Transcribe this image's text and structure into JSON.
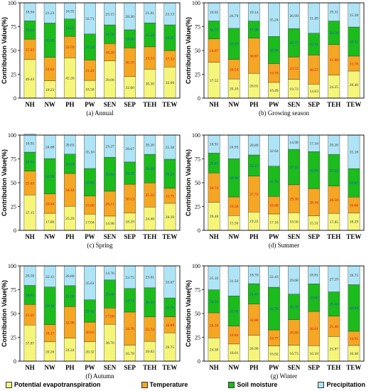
{
  "chart_data": {
    "type": "bar",
    "stacked": true,
    "series_meta": [
      {
        "name": "Potential evapotranspiration",
        "color": "#f5f57a"
      },
      {
        "name": "Temperature",
        "color": "#f5a623"
      },
      {
        "name": "Soil moisture",
        "color": "#1bbc1b"
      },
      {
        "name": "Precipitation",
        "color": "#aee4f5"
      }
    ],
    "categories": [
      "NH",
      "NW",
      "PH",
      "PW",
      "SEN",
      "SEP",
      "TEH",
      "TEW"
    ],
    "ylabel": "Contribution Value(%)",
    "ylim": [
      0,
      100
    ],
    "yticks": [
      0,
      25,
      50,
      75,
      100
    ],
    "panels": [
      {
        "caption": "(a) Annual",
        "series": [
          {
            "name": "Potential evapotranspiration",
            "values": [
              40.43,
              18.23,
              42.26,
              18.58,
              39.06,
              22.6,
              30.3,
              32.6
            ]
          },
          {
            "name": "Temperature",
            "values": [
              21.43,
              24.62,
              22.59,
              21.42,
              18.2,
              30.1,
              23.53,
              17.32
            ]
          },
          {
            "name": "Soil moisture",
            "values": [
              19.22,
              35.92,
              18.22,
              27.29,
              19.58,
              19.0,
              25.16,
              26.95
            ]
          },
          {
            "name": "Precipitation",
            "values": [
              18.94,
              21.23,
              16.93,
              32.71,
              23.15,
              28.3,
              21.01,
              23.13
            ]
          }
        ]
      },
      {
        "caption": "(b) Growing season",
        "series": [
          {
            "name": "Potential evapotranspiration",
            "values": [
              37.52,
              20.1,
              26.01,
              16.49,
              19.72,
              14.63,
              24.25,
              28.4
            ]
          },
          {
            "name": "Temperature",
            "values": [
              24.67,
              20.54,
              36.87,
              19.78,
              23.52,
              30.57,
              31.88,
              15.7
            ]
          },
          {
            "name": "Soil moisture",
            "values": [
              18.77,
              32.57,
              17.98,
              28.49,
              29.77,
              22.91,
              24.76,
              30.52
            ]
          },
          {
            "name": "Precipitation",
            "values": [
              19.05,
              26.79,
              19.14,
              35.24,
              26.99,
              31.89,
              19.31,
              25.38
            ]
          }
        ]
      },
      {
        "caption": "(c) Spring",
        "series": [
          {
            "name": "Potential evapotranspiration",
            "values": [
              37.15,
              17.89,
              25.29,
              17.04,
              14.98,
              18.29,
              24.48,
              28.39
            ]
          },
          {
            "name": "Temperature",
            "values": [
              25.03,
              20.44,
              34.44,
              19.0,
              26.11,
              30.13,
              25.32,
              15.73
            ]
          },
          {
            "name": "Soil moisture",
            "values": [
              19.91,
              36.99,
              20.24,
              28.86,
              35.64,
              23.32,
              30.0,
              30.53
            ]
          },
          {
            "name": "Precipitation",
            "values": [
              18.91,
              24.68,
              20.03,
              35.1,
              23.27,
              28.07,
              20.2,
              25.38
            ]
          }
        ]
      },
      {
        "caption": "(d) Summer",
        "series": [
          {
            "name": "Potential evapotranspiration",
            "values": [
              29.48,
              15.5,
              19.22,
              17.18,
              18.56,
              15.31,
              17.85,
              18.29
            ]
          },
          {
            "name": "Temperature",
            "values": [
              30.74,
              19.58,
              37.72,
              18.48,
              29.3,
              28.44,
              28.58,
              16.66
            ]
          },
          {
            "name": "Soil moisture",
            "values": [
              20.87,
              39.99,
              22.17,
              31.7,
              37.16,
              38.88,
              33.32,
              29.87
            ]
          },
          {
            "name": "Precipitation",
            "values": [
              18.91,
              24.93,
              20.89,
              32.64,
              14.98,
              17.34,
              20.26,
              35.18
            ]
          }
        ]
      },
      {
        "caption": "(f) Autumn",
        "series": [
          {
            "name": "Potential evapotranspiration",
            "values": [
              37.87,
              20.26,
              24.24,
              20.32,
              38.7,
              16.78,
              20.82,
              29.75
            ]
          },
          {
            "name": "Temperature",
            "values": [
              21.61,
              18.17,
              32.98,
              20.65,
              17.08,
              34.76,
              25.74,
              16.89
            ]
          },
          {
            "name": "Soil moisture",
            "values": [
              20.01,
              39.39,
              21.98,
              23.42,
              29.46,
              24.71,
              30.43,
              19.7
            ]
          },
          {
            "name": "Precipitation",
            "values": [
              20.5,
              22.11,
              20.8,
              35.61,
              14.76,
              23.75,
              23.01,
              33.67
            ]
          }
        ]
      },
      {
        "caption": "(g) Winter",
        "series": [
          {
            "name": "Potential evapotranspiration",
            "values": [
              24.38,
              18.01,
              26.99,
              16.02,
              16.73,
              16.18,
              25.87,
              16.46
            ]
          },
          {
            "name": "Temperature",
            "values": [
              26.39,
              18.84,
              32.88,
              16.77,
              26.89,
              36.01,
              21.4,
              14.91
            ]
          },
          {
            "name": "Soil moisture",
            "values": [
              24.13,
              31.65,
              21.43,
              44.78,
              26.7,
              29.0,
              25.44,
              48.89
            ]
          },
          {
            "name": "Precipitation",
            "values": [
              25.1,
              31.5,
              18.7,
              22.43,
              29.68,
              18.81,
              27.29,
              19.75
            ]
          }
        ]
      }
    ]
  },
  "legend": [
    {
      "label": "Potential evapotranspiration",
      "color": "#f5f57a"
    },
    {
      "label": "Temperature",
      "color": "#f5a623"
    },
    {
      "label": "Soil moisture",
      "color": "#1bbc1b"
    },
    {
      "label": "Precipitation",
      "color": "#aee4f5"
    }
  ]
}
